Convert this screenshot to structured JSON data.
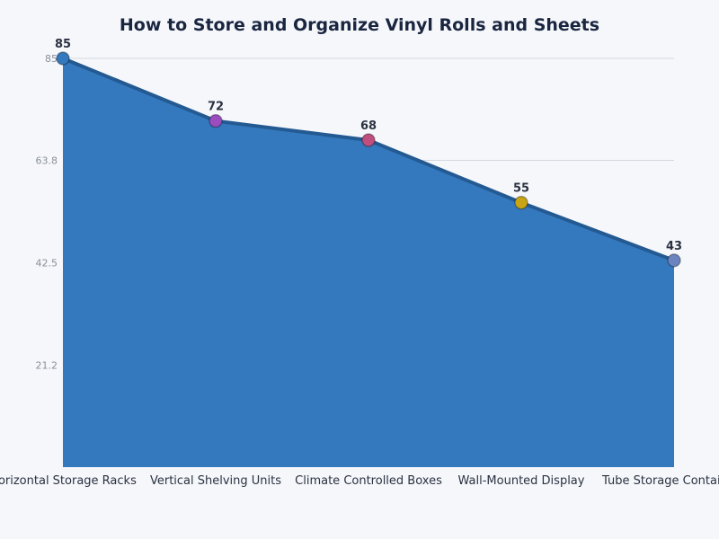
{
  "chart_data": {
    "type": "area",
    "title": "How to Store and Organize Vinyl Rolls and Sheets",
    "xlabel": "",
    "ylabel": "",
    "categories": [
      "Horizontal Storage Racks",
      "Vertical Shelving Units",
      "Climate Controlled Boxes",
      "Wall-Mounted Display",
      "Tube Storage Containers"
    ],
    "values": [
      85,
      72,
      68,
      55,
      43
    ],
    "ylim": [
      0,
      85
    ],
    "yticks": [
      "21.2",
      "42.5",
      "63.8",
      "85"
    ],
    "grid": true,
    "fill_color": "#3478be",
    "line_color": "#245a92",
    "point_colors": [
      "#3478be",
      "#9b4dbf",
      "#c04f80",
      "#c8a514",
      "#6b84c0"
    ]
  }
}
